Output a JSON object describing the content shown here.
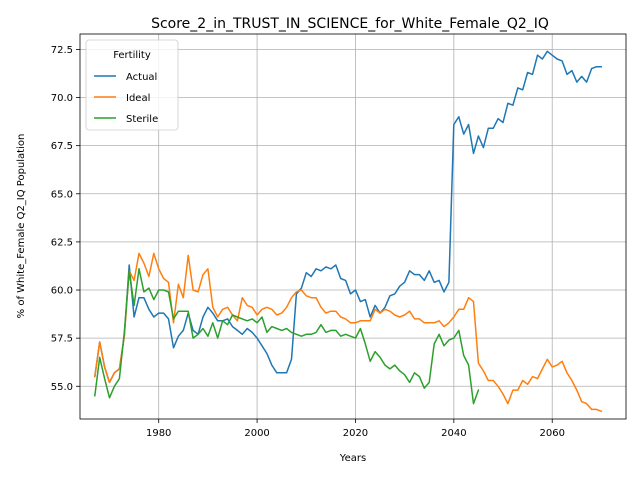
{
  "chart_data": {
    "type": "line",
    "title": "Score_2_in_TRUST_IN_SCIENCE_for_White_Female_Q2_IQ",
    "xlabel": "Years",
    "ylabel": "% of White_Female Q2_IQ Population",
    "xlim": [
      1964,
      2075
    ],
    "ylim": [
      53.3,
      73.3
    ],
    "x_ticks": [
      1980,
      2000,
      2020,
      2040,
      2060
    ],
    "y_ticks": [
      55.0,
      57.5,
      60.0,
      62.5,
      65.0,
      67.5,
      70.0,
      72.5
    ],
    "y_tick_labels": [
      "55.0",
      "57.5",
      "60.0",
      "62.5",
      "65.0",
      "67.5",
      "70.0",
      "72.5"
    ],
    "grid": true,
    "legend": {
      "title": "Fertility",
      "placement": "top-left"
    },
    "series": [
      {
        "name": "Actual",
        "color": "#1f77b4",
        "x": [
          1967,
          1968,
          1969,
          1970,
          1971,
          1972,
          1973,
          1974,
          1975,
          1976,
          1977,
          1978,
          1979,
          1980,
          1981,
          1982,
          1983,
          1984,
          1985,
          1986,
          1987,
          1988,
          1989,
          1990,
          1991,
          1992,
          1993,
          1994,
          1995,
          1996,
          1997,
          1998,
          1999,
          2000,
          2001,
          2002,
          2003,
          2004,
          2005,
          2006,
          2007,
          2008,
          2009,
          2010,
          2011,
          2012,
          2013,
          2014,
          2015,
          2016,
          2017,
          2018,
          2019,
          2020,
          2021,
          2022,
          2023,
          2024,
          2025,
          2026,
          2027,
          2028,
          2029,
          2030,
          2031,
          2032,
          2033,
          2034,
          2035,
          2036,
          2037,
          2038,
          2039,
          2040,
          2041,
          2042,
          2043,
          2044,
          2045,
          2046,
          2047,
          2048,
          2049,
          2050,
          2051,
          2052,
          2053,
          2054,
          2055,
          2056,
          2057,
          2058,
          2059,
          2060,
          2061,
          2062,
          2063,
          2064,
          2065,
          2066,
          2067,
          2068,
          2069,
          2070
        ],
        "y": [
          55.5,
          57.3,
          56.0,
          55.2,
          55.7,
          55.9,
          57.6,
          61.3,
          58.6,
          59.6,
          59.6,
          59.0,
          58.6,
          58.8,
          58.8,
          58.5,
          57.0,
          57.6,
          57.9,
          58.8,
          57.9,
          57.7,
          58.6,
          59.1,
          58.8,
          58.4,
          58.4,
          58.5,
          58.1,
          57.9,
          57.7,
          58.0,
          57.8,
          57.5,
          57.1,
          56.7,
          56.1,
          55.7,
          55.7,
          55.7,
          56.4,
          59.8,
          60.1,
          60.9,
          60.7,
          61.1,
          61.0,
          61.2,
          61.1,
          61.3,
          60.6,
          60.5,
          59.8,
          60.0,
          59.4,
          59.5,
          58.6,
          59.2,
          58.8,
          59.1,
          59.7,
          59.8,
          60.2,
          60.4,
          61.0,
          60.8,
          60.8,
          60.5,
          61.0,
          60.4,
          60.5,
          59.9,
          60.4,
          68.6,
          69.0,
          68.1,
          68.6,
          67.1,
          68.0,
          67.4,
          68.4,
          68.4,
          68.9,
          68.7,
          69.7,
          69.6,
          70.5,
          70.4,
          71.3,
          71.2,
          72.2,
          72.0,
          72.4,
          72.2,
          72.0,
          71.9,
          71.2,
          71.4,
          70.8,
          71.1,
          70.8,
          71.5,
          71.6,
          71.6
        ]
      },
      {
        "name": "Ideal",
        "color": "#ff7f0e",
        "x": [
          1967,
          1968,
          1969,
          1970,
          1971,
          1972,
          1973,
          1974,
          1975,
          1976,
          1977,
          1978,
          1979,
          1980,
          1981,
          1982,
          1983,
          1984,
          1985,
          1986,
          1987,
          1988,
          1989,
          1990,
          1991,
          1992,
          1993,
          1994,
          1995,
          1996,
          1997,
          1998,
          1999,
          2000,
          2001,
          2002,
          2003,
          2004,
          2005,
          2006,
          2007,
          2008,
          2009,
          2010,
          2011,
          2012,
          2013,
          2014,
          2015,
          2016,
          2017,
          2018,
          2019,
          2020,
          2021,
          2022,
          2023,
          2024,
          2025,
          2026,
          2027,
          2028,
          2029,
          2030,
          2031,
          2032,
          2033,
          2034,
          2035,
          2036,
          2037,
          2038,
          2039,
          2040,
          2041,
          2042,
          2043,
          2044,
          2045,
          2046,
          2047,
          2048,
          2049,
          2050,
          2051,
          2052,
          2053,
          2054,
          2055,
          2056,
          2057,
          2058,
          2059,
          2060,
          2061,
          2062,
          2063,
          2064,
          2065,
          2066,
          2067,
          2068,
          2069,
          2070
        ],
        "y": [
          55.5,
          57.3,
          56.0,
          55.2,
          55.7,
          55.9,
          57.6,
          61.0,
          60.5,
          61.9,
          61.4,
          60.7,
          61.9,
          61.1,
          60.6,
          60.4,
          58.3,
          60.3,
          59.6,
          61.8,
          60.0,
          59.9,
          60.8,
          61.1,
          59.1,
          58.6,
          59.0,
          59.1,
          58.7,
          58.4,
          59.6,
          59.2,
          59.1,
          58.7,
          59.0,
          59.1,
          59.0,
          58.7,
          58.8,
          59.1,
          59.6,
          59.9,
          60.0,
          59.7,
          59.6,
          59.6,
          59.1,
          58.8,
          58.9,
          58.9,
          58.6,
          58.5,
          58.3,
          58.3,
          58.4,
          58.4,
          58.4,
          59.0,
          58.8,
          59.0,
          58.9,
          58.7,
          58.6,
          58.7,
          58.9,
          58.5,
          58.5,
          58.3,
          58.3,
          58.3,
          58.4,
          58.1,
          58.3,
          58.6,
          59.0,
          59.0,
          59.6,
          59.4,
          56.2,
          55.8,
          55.3,
          55.3,
          55.0,
          54.6,
          54.1,
          54.8,
          54.8,
          55.3,
          55.1,
          55.5,
          55.4,
          55.9,
          56.4,
          56.0,
          56.1,
          56.3,
          55.7,
          55.3,
          54.8,
          54.2,
          54.1,
          53.8,
          53.8,
          53.7
        ]
      },
      {
        "name": "Sterile",
        "color": "#2ca02c",
        "x": [
          1967,
          1968,
          1969,
          1970,
          1971,
          1972,
          1973,
          1974,
          1975,
          1976,
          1977,
          1978,
          1979,
          1980,
          1981,
          1982,
          1983,
          1984,
          1985,
          1986,
          1987,
          1988,
          1989,
          1990,
          1991,
          1992,
          1993,
          1994,
          1995,
          1996,
          1997,
          1998,
          1999,
          2000,
          2001,
          2002,
          2003,
          2004,
          2005,
          2006,
          2007,
          2008,
          2009,
          2010,
          2011,
          2012,
          2013,
          2014,
          2015,
          2016,
          2017,
          2018,
          2019,
          2020,
          2021,
          2022,
          2023,
          2024,
          2025,
          2026,
          2027,
          2028,
          2029,
          2030,
          2031,
          2032,
          2033,
          2034,
          2035,
          2036,
          2037,
          2038,
          2039,
          2040,
          2041,
          2042,
          2043,
          2044,
          2045
        ],
        "y": [
          54.5,
          56.5,
          55.4,
          54.4,
          55.0,
          55.4,
          57.8,
          61.0,
          59.2,
          61.1,
          59.9,
          60.1,
          59.5,
          60.0,
          60.0,
          59.9,
          58.5,
          58.9,
          58.9,
          58.9,
          57.5,
          57.7,
          58.0,
          57.6,
          58.3,
          57.5,
          58.4,
          58.2,
          58.7,
          58.6,
          58.5,
          58.4,
          58.5,
          58.3,
          58.6,
          57.8,
          58.1,
          58.0,
          57.9,
          58.0,
          57.8,
          57.7,
          57.6,
          57.7,
          57.7,
          57.8,
          58.2,
          57.8,
          57.9,
          57.9,
          57.6,
          57.7,
          57.6,
          57.5,
          58.0,
          57.2,
          56.3,
          56.8,
          56.5,
          56.1,
          55.9,
          56.1,
          55.8,
          55.6,
          55.2,
          55.7,
          55.5,
          54.9,
          55.2,
          57.2,
          57.7,
          57.1,
          57.4,
          57.5,
          57.9,
          56.6,
          56.1,
          54.1,
          54.8
        ]
      }
    ]
  }
}
